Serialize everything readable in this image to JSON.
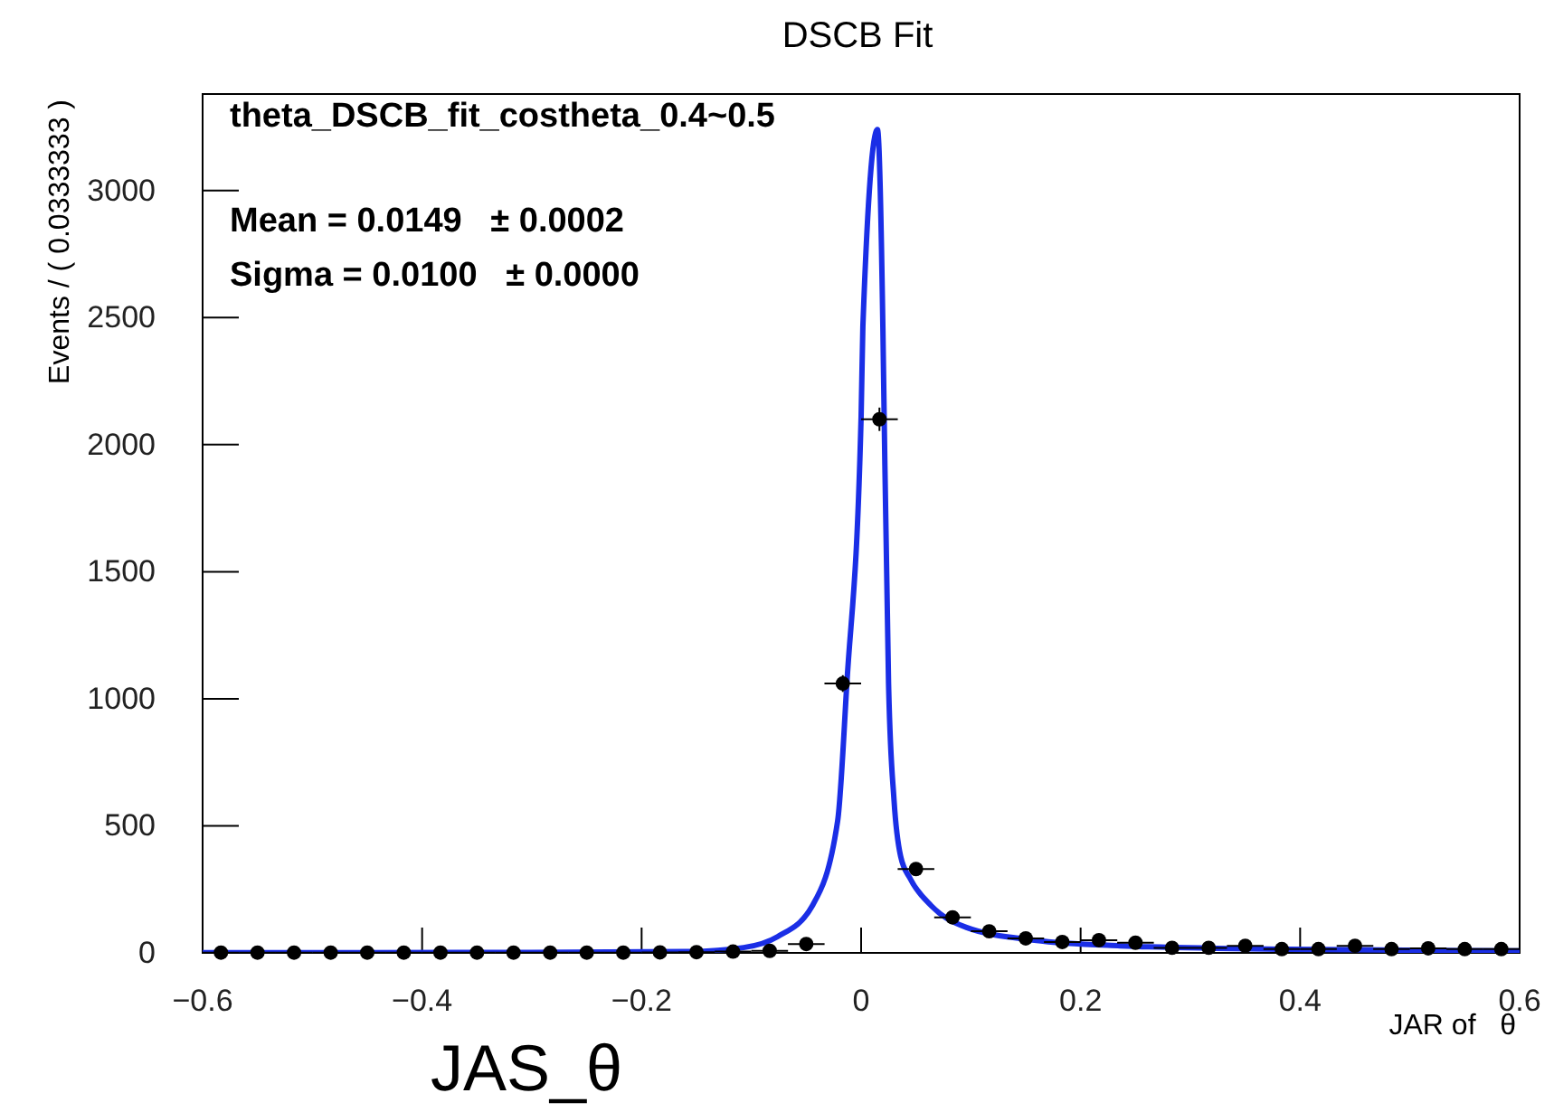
{
  "chart_data": {
    "type": "scatter",
    "title": "DSCB Fit",
    "xlabel": "JAR of   θ",
    "ylabel": "Events / ( 0.0333333 )",
    "annotations": [
      "theta_DSCB_fit_costheta_0.4~0.5",
      "Mean = 0.0149   ± 0.0002",
      "Sigma = 0.0100   ± 0.0000",
      "JAS_θ"
    ],
    "xlim": [
      -0.6,
      0.6
    ],
    "ylim": [
      0,
      3380
    ],
    "xticks": [
      {
        "value": -0.6,
        "label": "−0.6"
      },
      {
        "value": -0.4,
        "label": "−0.4"
      },
      {
        "value": -0.2,
        "label": "−0.2"
      },
      0,
      0.2,
      0.4,
      0.6
    ],
    "yticks": [
      0,
      500,
      1000,
      1500,
      2000,
      2500,
      3000
    ],
    "grid": false,
    "marker": "circle",
    "series": [
      {
        "color": "#000000",
        "x": [
          -0.5833,
          -0.55,
          -0.5167,
          -0.4833,
          -0.45,
          -0.4167,
          -0.3833,
          -0.35,
          -0.3167,
          -0.2833,
          -0.25,
          -0.2167,
          -0.1833,
          -0.15,
          -0.1167,
          -0.0833,
          -0.05,
          -0.0167,
          0.0167,
          0.05,
          0.0833,
          0.1167,
          0.15,
          0.1833,
          0.2167,
          0.25,
          0.2833,
          0.3167,
          0.35,
          0.3833,
          0.4167,
          0.45,
          0.4833,
          0.5167,
          0.55,
          0.5833
        ],
        "values": [
          1,
          1,
          1,
          1,
          1,
          1,
          1,
          1,
          1,
          1,
          1,
          1,
          2,
          3,
          5,
          8,
          35,
          1060,
          2100,
          330,
          140,
          85,
          57,
          43,
          50,
          40,
          20,
          20,
          28,
          15,
          15,
          28,
          15,
          18,
          15,
          15
        ],
        "errors": [
          1,
          1,
          1,
          1,
          1,
          1,
          1,
          1,
          1,
          1,
          1,
          1,
          1,
          2,
          2,
          3,
          6,
          33,
          46,
          18,
          12,
          9,
          8,
          7,
          7,
          6,
          4,
          4,
          5,
          4,
          4,
          5,
          4,
          4,
          4,
          4
        ],
        "xerrors": [
          0.0167,
          0.0167,
          0.0167,
          0.0167,
          0.0167,
          0.0167,
          0.0167,
          0.0167,
          0.0167,
          0.0167,
          0.0167,
          0.0167,
          0.0167,
          0.0167,
          0.0167,
          0.0167,
          0.0167,
          0.0167,
          0.0167,
          0.0167,
          0.0167,
          0.0167,
          0.0167,
          0.0167,
          0.0167,
          0.0167,
          0.0167,
          0.0167,
          0.0167,
          0.0167,
          0.0167,
          0.0167,
          0.0167,
          0.0167,
          0.0167,
          0.0167
        ]
      },
      {
        "type": "line",
        "color": "#1a2ee6",
        "marker": "none",
        "line_style": "solid",
        "x": [
          -0.6,
          -0.3,
          -0.16,
          -0.107,
          -0.076,
          -0.0445,
          -0.0214,
          -0.013,
          0.0,
          0.0016,
          0.0149,
          0.0198,
          0.021,
          0.025,
          0.03,
          0.036,
          0.045,
          0.064,
          0.096,
          0.158,
          0.236,
          0.39,
          0.6
        ],
        "values": [
          1,
          2,
          5,
          21,
          64,
          185,
          519,
          1060,
          2110,
          2466,
          3240,
          2466,
          2110,
          1060,
          600,
          380,
          290,
          185,
          100,
          50,
          28,
          14,
          8
        ]
      }
    ]
  }
}
